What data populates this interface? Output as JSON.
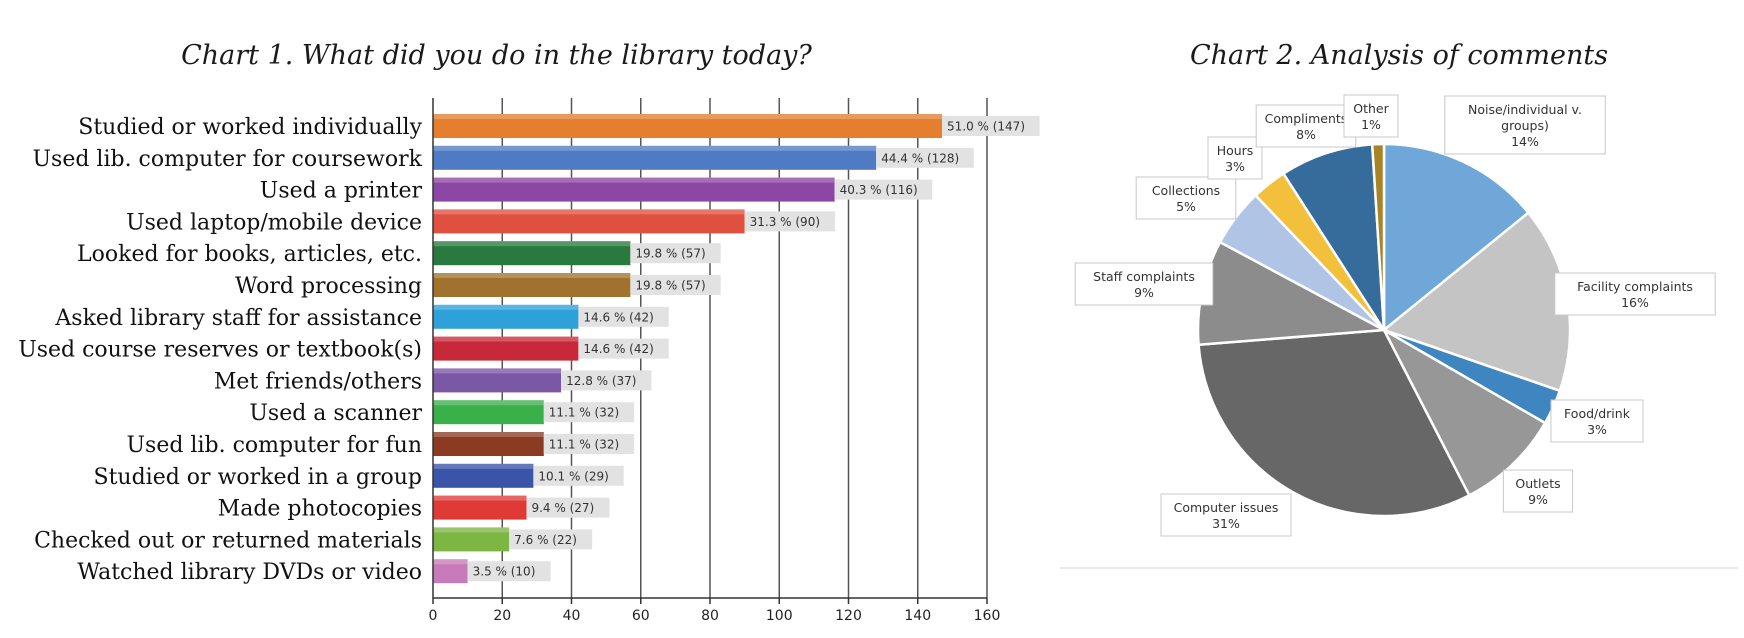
{
  "chart_data": [
    {
      "type": "bar",
      "orientation": "horizontal",
      "title": "Chart 1. What did you do in the library today?",
      "xlim": [
        0,
        160
      ],
      "xticks": [
        0,
        20,
        40,
        60,
        80,
        100,
        120,
        140,
        160
      ],
      "grid": true,
      "categories": [
        "Studied or worked individually",
        "Used lib. computer for coursework",
        "Used a printer",
        "Used laptop/mobile device",
        "Looked for books, articles, etc.",
        "Word processing",
        "Asked library staff for assistance",
        "Used course reserves or textbook(s)",
        "Met friends/others",
        "Used a scanner",
        "Used lib. computer for fun",
        "Studied or worked in a group",
        "Made photocopies",
        "Checked out or returned materials",
        "Watched library DVDs or video"
      ],
      "values": [
        147,
        128,
        116,
        90,
        57,
        57,
        42,
        42,
        37,
        32,
        32,
        29,
        27,
        22,
        10
      ],
      "data_labels": [
        "51.0 % (147)",
        "44.4 % (128)",
        "40.3 % (116)",
        "31.3 % (90)",
        "19.8 % (57)",
        "19.8 % (57)",
        "14.6 % (42)",
        "14.6 % (42)",
        "12.8 % (37)",
        "11.1 % (32)",
        "11.1 % (32)",
        "10.1 % (29)",
        "9.4 % (27)",
        "7.6 % (22)",
        "3.5 % (10)"
      ],
      "colors": [
        "#e57f2d",
        "#4f7bc4",
        "#8b47a3",
        "#e0503e",
        "#2a7a3f",
        "#a0722d",
        "#2fa1d9",
        "#c8293a",
        "#7a58a6",
        "#3ab04a",
        "#8a3b22",
        "#3954a8",
        "#e03a36",
        "#7db643",
        "#c77bb8"
      ]
    },
    {
      "type": "pie",
      "title": "Chart 2.  Analysis of comments",
      "slices": [
        {
          "name": "Noise/individual v. groups)",
          "value": 14,
          "label": "14%",
          "color": "#6fa8d8"
        },
        {
          "name": "Facility complaints",
          "value": 16,
          "label": "16%",
          "color": "#c4c4c4"
        },
        {
          "name": "Food/drink",
          "value": 3,
          "label": "3%",
          "color": "#3f86c0"
        },
        {
          "name": "Outlets",
          "value": 9,
          "label": "9%",
          "color": "#979797"
        },
        {
          "name": "Computer issues",
          "value": 31,
          "label": "31%",
          "color": "#676767"
        },
        {
          "name": "Staff complaints",
          "value": 9,
          "label": "9%",
          "color": "#8c8c8c"
        },
        {
          "name": "Collections",
          "value": 5,
          "label": "5%",
          "color": "#b0c5e6"
        },
        {
          "name": "Hours",
          "value": 3,
          "label": "3%",
          "color": "#f3c03c"
        },
        {
          "name": "Compliments",
          "value": 8,
          "label": "8%",
          "color": "#366c9c"
        },
        {
          "name": "Other",
          "value": 1,
          "label": "1%",
          "color": "#a88426"
        }
      ]
    }
  ]
}
